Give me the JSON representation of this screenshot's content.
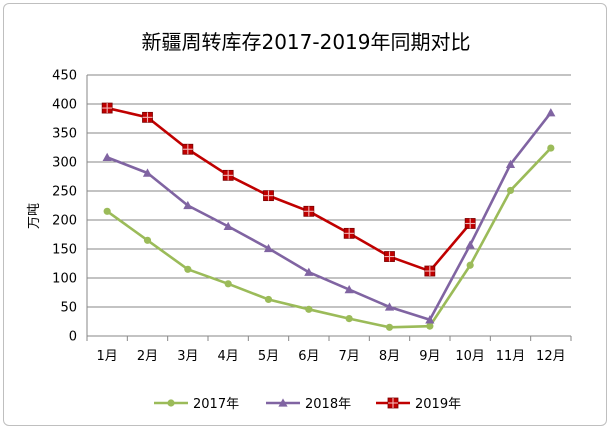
{
  "chart_data": {
    "type": "line",
    "title": "新疆周转库存2017-2019年同期对比",
    "ylabel": "万吨",
    "xlabel": "",
    "categories": [
      "1月",
      "2月",
      "3月",
      "4月",
      "5月",
      "6月",
      "7月",
      "8月",
      "9月",
      "10月",
      "11月",
      "12月"
    ],
    "ylim": [
      0,
      450
    ],
    "yticks": [
      "0",
      "50",
      "100",
      "150",
      "200",
      "250",
      "300",
      "350",
      "400",
      "450"
    ],
    "grid": true,
    "legend_position": "bottom",
    "series": [
      {
        "name": "2017年",
        "color": "#9bbb59",
        "marker": "circle",
        "values": [
          215,
          165,
          115,
          90,
          63,
          46,
          30,
          15,
          17,
          122,
          251,
          324
        ]
      },
      {
        "name": "2018年",
        "color": "#8064a2",
        "marker": "triangle",
        "values": [
          308,
          281,
          225,
          189,
          151,
          110,
          80,
          50,
          28,
          157,
          296,
          385
        ]
      },
      {
        "name": "2019年",
        "color": "#c00000",
        "marker": "cross-square",
        "values": [
          393,
          377,
          322,
          277,
          242,
          215,
          177,
          137,
          112,
          194,
          null,
          null
        ]
      }
    ]
  }
}
